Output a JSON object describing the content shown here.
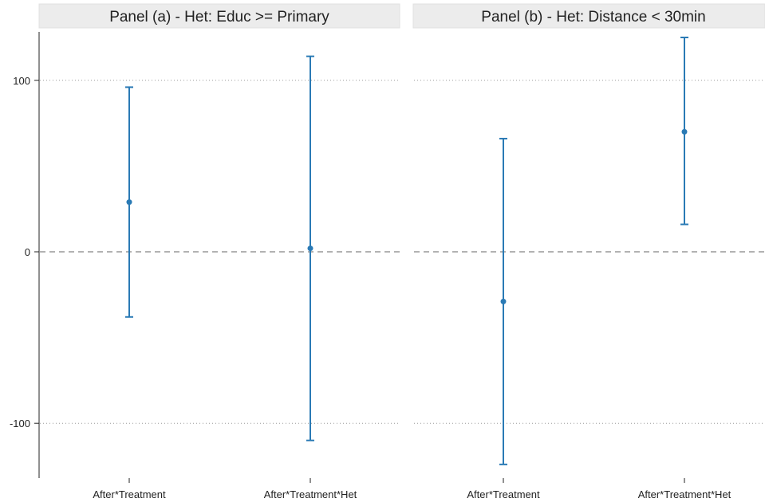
{
  "chart_data": [
    {
      "type": "scatter",
      "title": "Panel (a) - Het: Educ >= Primary",
      "categories": [
        "After*Treatment",
        "After*Treatment*Het"
      ],
      "series": [
        {
          "estimate": [
            29,
            2
          ],
          "ci_lower": [
            -38,
            -110
          ],
          "ci_upper": [
            96,
            114
          ]
        }
      ],
      "ylim": [
        -125,
        125
      ],
      "yticks": [
        -100,
        0,
        100
      ],
      "reference_line": 0,
      "grid": true,
      "color": "#2a7ab5"
    },
    {
      "type": "scatter",
      "title": "Panel (b) - Het: Distance < 30min",
      "categories": [
        "After*Treatment",
        "After*Treatment*Het"
      ],
      "series": [
        {
          "estimate": [
            -29,
            70
          ],
          "ci_lower": [
            -124,
            16
          ],
          "ci_upper": [
            66,
            125
          ]
        }
      ],
      "ylim": [
        -125,
        125
      ],
      "yticks": [
        -100,
        0,
        100
      ],
      "reference_line": 0,
      "grid": true,
      "color": "#2a7ab5"
    }
  ]
}
